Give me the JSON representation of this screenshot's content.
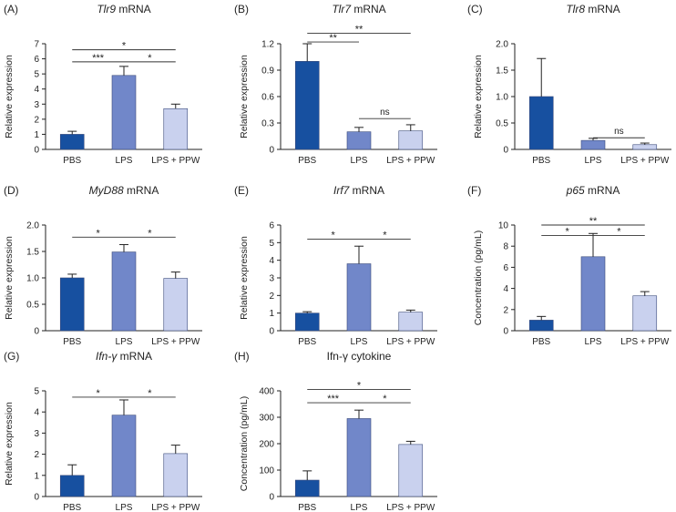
{
  "colors": {
    "PBS": "#1750a0",
    "LPS": "#7187c9",
    "LPS + PPW": "#c9d1ee",
    "axis": "#222222",
    "error": "#222222",
    "bracket": "#333333"
  },
  "chart_data": [
    {
      "panel": "(A)",
      "type": "bar",
      "title_gene": "Tlr9",
      "title_suffix": " mRNA",
      "ylabel": "Relative expression",
      "categories": [
        "PBS",
        "LPS",
        "LPS + PPW"
      ],
      "values": [
        1.0,
        4.9,
        2.7
      ],
      "errors": [
        0.2,
        0.6,
        0.3
      ],
      "ylim": [
        0,
        7
      ],
      "yticks": [
        "0",
        "1",
        "2",
        "3",
        "4",
        "5",
        "6",
        "7"
      ],
      "brackets": [
        {
          "from": 0,
          "to": 2,
          "level": 6.6,
          "label": "*"
        },
        {
          "from": 0,
          "to": 1,
          "level": 5.8,
          "label": "***"
        },
        {
          "from": 1,
          "to": 2,
          "level": 5.8,
          "label": "*"
        }
      ]
    },
    {
      "panel": "(B)",
      "type": "bar",
      "title_gene": "Tlr7",
      "title_suffix": " mRNA",
      "ylabel": "Relative expression",
      "categories": [
        "PBS",
        "LPS",
        "LPS + PPW"
      ],
      "values": [
        1.0,
        0.2,
        0.21
      ],
      "errors": [
        0.2,
        0.05,
        0.07
      ],
      "ylim": [
        0,
        1.2
      ],
      "yticks": [
        "0",
        "0.3",
        "0.6",
        "0.9",
        "1.2"
      ],
      "brackets": [
        {
          "from": 0,
          "to": 2,
          "level": 1.32,
          "label": "**"
        },
        {
          "from": 0,
          "to": 1,
          "level": 1.22,
          "label": "**"
        },
        {
          "from": 1,
          "to": 2,
          "level": 0.35,
          "label": "ns"
        }
      ]
    },
    {
      "panel": "(C)",
      "type": "bar",
      "title_gene": "Tlr8",
      "title_suffix": " mRNA",
      "ylabel": "Relative expression",
      "categories": [
        "PBS",
        "LPS",
        "LPS + PPW"
      ],
      "values": [
        1.0,
        0.17,
        0.09
      ],
      "errors": [
        0.72,
        0.04,
        0.03
      ],
      "ylim": [
        0,
        2.0
      ],
      "yticks": [
        "0",
        "0.5",
        "1.0",
        "1.5",
        "2.0"
      ],
      "brackets": [
        {
          "from": 1,
          "to": 2,
          "level": 0.22,
          "label": "ns"
        }
      ]
    },
    {
      "panel": "(D)",
      "type": "bar",
      "title_gene": "MyD88",
      "title_suffix": " mRNA",
      "ylabel": "Relative expression",
      "categories": [
        "PBS",
        "LPS",
        "LPS + PPW"
      ],
      "values": [
        1.0,
        1.49,
        0.99
      ],
      "errors": [
        0.07,
        0.14,
        0.12
      ],
      "ylim": [
        0,
        2.0
      ],
      "yticks": [
        "0",
        "0.5",
        "1.0",
        "1.5",
        "2.0"
      ],
      "brackets": [
        {
          "from": 0,
          "to": 1,
          "level": 1.77,
          "label": "*"
        },
        {
          "from": 1,
          "to": 2,
          "level": 1.77,
          "label": "*"
        }
      ]
    },
    {
      "panel": "(E)",
      "type": "bar",
      "title_gene": "Irf7",
      "title_suffix": " mRNA",
      "ylabel": "Relative expression",
      "categories": [
        "PBS",
        "LPS",
        "LPS + PPW"
      ],
      "values": [
        1.0,
        3.8,
        1.05
      ],
      "errors": [
        0.08,
        1.0,
        0.12
      ],
      "ylim": [
        0,
        6
      ],
      "yticks": [
        "0",
        "1",
        "2",
        "3",
        "4",
        "5",
        "6"
      ],
      "brackets": [
        {
          "from": 0,
          "to": 1,
          "level": 5.2,
          "label": "*"
        },
        {
          "from": 1,
          "to": 2,
          "level": 5.2,
          "label": "*"
        }
      ]
    },
    {
      "panel": "(F)",
      "type": "bar",
      "title_gene": "p65",
      "title_suffix": " mRNA",
      "ylabel": "Concentration (pg/mL)",
      "categories": [
        "PBS",
        "LPS",
        "LPS + PPW"
      ],
      "values": [
        1.0,
        7.0,
        3.3
      ],
      "errors": [
        0.35,
        2.2,
        0.4
      ],
      "ylim": [
        0,
        10
      ],
      "yticks": [
        "0",
        "2",
        "4",
        "6",
        "8",
        "10"
      ],
      "brackets": [
        {
          "from": 0,
          "to": 2,
          "level": 10.0,
          "label": "**"
        },
        {
          "from": 0,
          "to": 1,
          "level": 9.0,
          "label": "*"
        },
        {
          "from": 1,
          "to": 2,
          "level": 9.0,
          "label": "*"
        }
      ]
    },
    {
      "panel": "(G)",
      "type": "bar",
      "title_gene": "Ifn-γ",
      "title_suffix": " mRNA",
      "ylabel": "Relative expression",
      "categories": [
        "PBS",
        "LPS",
        "LPS + PPW"
      ],
      "values": [
        1.0,
        3.85,
        2.03
      ],
      "errors": [
        0.5,
        0.72,
        0.4
      ],
      "ylim": [
        0,
        5
      ],
      "yticks": [
        "0",
        "1",
        "2",
        "3",
        "4",
        "5"
      ],
      "brackets": [
        {
          "from": 0,
          "to": 1,
          "level": 4.7,
          "label": "*"
        },
        {
          "from": 1,
          "to": 2,
          "level": 4.7,
          "label": "*"
        }
      ]
    },
    {
      "panel": "(H)",
      "type": "bar",
      "title_gene": "",
      "title_suffix": "Ifn-γ cytokine",
      "ylabel": "Concentration (pg/mL)",
      "categories": [
        "PBS",
        "LPS",
        "LPS + PPW"
      ],
      "values": [
        62,
        295,
        197
      ],
      "errors": [
        35,
        32,
        12
      ],
      "ylim": [
        0,
        400
      ],
      "yticks": [
        "0",
        "100",
        "200",
        "300",
        "400"
      ],
      "brackets": [
        {
          "from": 0,
          "to": 2,
          "level": 405,
          "label": "*"
        },
        {
          "from": 0,
          "to": 1,
          "level": 355,
          "label": "***"
        },
        {
          "from": 1,
          "to": 2,
          "level": 355,
          "label": "*"
        }
      ]
    }
  ]
}
